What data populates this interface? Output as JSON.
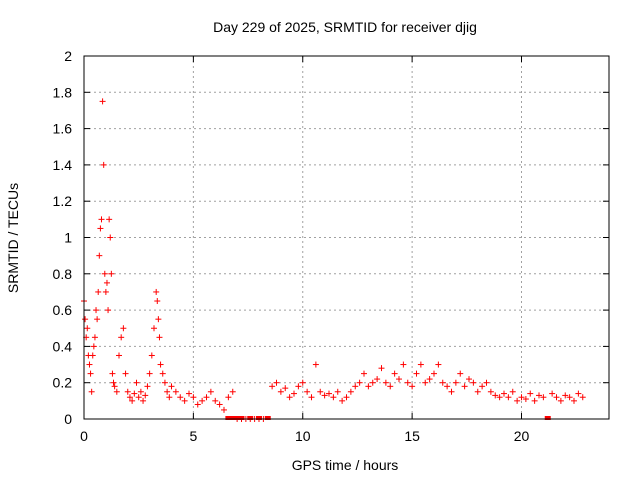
{
  "chart_data": {
    "type": "scatter",
    "title": "Day 229 of 2025, SRMTID for receiver djig",
    "xlabel": "GPS time / hours",
    "ylabel": "SRMTID / TECUs",
    "xlim": [
      0,
      24
    ],
    "ylim": [
      0,
      2
    ],
    "xticks": [
      0,
      5,
      10,
      15,
      20
    ],
    "xtick_labels": [
      "0",
      "5",
      "10",
      "15",
      "20"
    ],
    "yticks": [
      0,
      0.2,
      0.4,
      0.6,
      0.8,
      1,
      1.2,
      1.4,
      1.6,
      1.8,
      2
    ],
    "ytick_labels": [
      "0",
      "0.2",
      "0.4",
      "0.6",
      "0.8",
      "1",
      "1.2",
      "1.4",
      "1.6",
      "1.8",
      "2"
    ],
    "grid": true,
    "marker": "+",
    "color": "#ff0000",
    "series": [
      {
        "name": "SRMTID",
        "x": [
          0.0,
          0.05,
          0.1,
          0.15,
          0.2,
          0.25,
          0.3,
          0.35,
          0.4,
          0.45,
          0.5,
          0.55,
          0.6,
          0.65,
          0.7,
          0.75,
          0.8,
          0.85,
          0.9,
          0.95,
          1.0,
          1.05,
          1.1,
          1.15,
          1.2,
          1.25,
          1.3,
          1.35,
          1.4,
          1.5,
          1.6,
          1.7,
          1.8,
          1.9,
          2.0,
          2.1,
          2.2,
          2.3,
          2.4,
          2.5,
          2.6,
          2.7,
          2.8,
          2.9,
          3.0,
          3.1,
          3.2,
          3.3,
          3.35,
          3.4,
          3.45,
          3.5,
          3.6,
          3.7,
          3.8,
          3.9,
          4.0,
          4.2,
          4.4,
          4.6,
          4.8,
          5.0,
          5.2,
          5.4,
          5.6,
          5.8,
          6.0,
          6.2,
          6.4,
          6.6,
          6.8,
          7.0,
          7.2,
          7.4,
          7.6,
          7.8,
          8.0,
          8.2,
          8.6,
          8.8,
          9.0,
          9.2,
          9.4,
          9.6,
          9.8,
          10.0,
          10.2,
          10.4,
          10.6,
          10.8,
          11.0,
          11.2,
          11.4,
          11.6,
          11.8,
          12.0,
          12.2,
          12.4,
          12.6,
          12.8,
          13.0,
          13.2,
          13.4,
          13.6,
          13.8,
          14.0,
          14.2,
          14.4,
          14.6,
          14.8,
          15.0,
          15.2,
          15.4,
          15.6,
          15.8,
          16.0,
          16.2,
          16.4,
          16.6,
          16.8,
          17.0,
          17.2,
          17.4,
          17.6,
          17.8,
          18.0,
          18.2,
          18.4,
          18.6,
          18.8,
          19.0,
          19.2,
          19.4,
          19.6,
          19.8,
          20.0,
          20.2,
          20.4,
          20.6,
          20.8,
          21.0,
          21.4,
          21.6,
          21.8,
          22.0,
          22.2,
          22.4,
          22.6,
          22.8
        ],
        "y": [
          0.65,
          0.55,
          0.45,
          0.5,
          0.35,
          0.3,
          0.25,
          0.15,
          0.35,
          0.4,
          0.45,
          0.6,
          0.55,
          0.7,
          0.9,
          1.05,
          1.1,
          1.75,
          1.4,
          0.8,
          0.7,
          0.75,
          0.6,
          1.1,
          1.0,
          0.8,
          0.25,
          0.2,
          0.18,
          0.15,
          0.35,
          0.45,
          0.5,
          0.25,
          0.15,
          0.12,
          0.1,
          0.14,
          0.2,
          0.12,
          0.15,
          0.1,
          0.13,
          0.18,
          0.25,
          0.35,
          0.5,
          0.7,
          0.65,
          0.55,
          0.45,
          0.3,
          0.25,
          0.2,
          0.15,
          0.12,
          0.18,
          0.15,
          0.12,
          0.1,
          0.14,
          0.12,
          0.08,
          0.1,
          0.12,
          0.15,
          0.1,
          0.08,
          0.05,
          0.12,
          0.15,
          0.0,
          0.0,
          0.0,
          0.0,
          0.0,
          0.0,
          0.0,
          0.18,
          0.2,
          0.15,
          0.17,
          0.12,
          0.14,
          0.18,
          0.2,
          0.15,
          0.12,
          0.3,
          0.15,
          0.13,
          0.14,
          0.12,
          0.15,
          0.1,
          0.12,
          0.15,
          0.18,
          0.2,
          0.25,
          0.18,
          0.2,
          0.22,
          0.28,
          0.2,
          0.18,
          0.25,
          0.22,
          0.3,
          0.2,
          0.18,
          0.25,
          0.3,
          0.2,
          0.22,
          0.25,
          0.3,
          0.2,
          0.18,
          0.15,
          0.2,
          0.25,
          0.18,
          0.22,
          0.2,
          0.15,
          0.18,
          0.2,
          0.15,
          0.13,
          0.12,
          0.14,
          0.12,
          0.15,
          0.1,
          0.12,
          0.11,
          0.14,
          0.1,
          0.13,
          0.12,
          0.14,
          0.12,
          0.1,
          0.13,
          0.12,
          0.1,
          0.14,
          0.12
        ]
      }
    ],
    "zero_marks_x": [
      6.6,
      6.8,
      7.0,
      7.2,
      7.6,
      8.0,
      8.4,
      21.2
    ]
  }
}
